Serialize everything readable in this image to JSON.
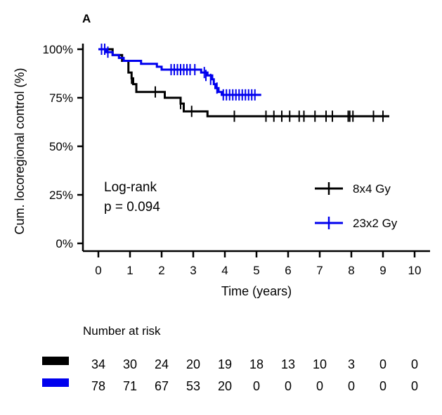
{
  "chart_data": {
    "type": "line",
    "panel_label": "A",
    "title": "",
    "xlabel": "Time (years)",
    "ylabel": "Cum. locoregional control (%)",
    "xlim": [
      0,
      10
    ],
    "ylim": [
      0,
      100
    ],
    "x_ticks": [
      "0",
      "1",
      "2",
      "3",
      "4",
      "5",
      "6",
      "7",
      "8",
      "9",
      "10"
    ],
    "y_ticks": [
      "0%",
      "25%",
      "50%",
      "75%",
      "100%"
    ],
    "grid": false,
    "legend_position": "right",
    "annotation": [
      "Log-rank",
      "p = 0.094"
    ],
    "series": [
      {
        "name": "8x4 Gy",
        "color": "#000000",
        "steps": [
          [
            0,
            100
          ],
          [
            0.45,
            97
          ],
          [
            0.75,
            94
          ],
          [
            0.95,
            88
          ],
          [
            1.05,
            85
          ],
          [
            1.1,
            82
          ],
          [
            1.2,
            78
          ],
          [
            2.1,
            75
          ],
          [
            2.6,
            72
          ],
          [
            2.7,
            68
          ],
          [
            3.45,
            65.5
          ],
          [
            9.2,
            65.5
          ]
        ],
        "censored": [
          [
            0.2,
            100
          ],
          [
            1.05,
            85
          ],
          [
            1.8,
            78
          ],
          [
            2.6,
            72
          ],
          [
            2.95,
            68
          ],
          [
            4.3,
            65.5
          ],
          [
            5.3,
            65.5
          ],
          [
            5.55,
            65.5
          ],
          [
            5.8,
            65.5
          ],
          [
            6.05,
            65.5
          ],
          [
            6.35,
            65.5
          ],
          [
            6.5,
            65.5
          ],
          [
            6.85,
            65.5
          ],
          [
            7.2,
            65.5
          ],
          [
            7.4,
            65.5
          ],
          [
            7.9,
            65.5
          ],
          [
            7.95,
            65.5
          ],
          [
            8.05,
            65.5
          ],
          [
            8.7,
            65.5
          ],
          [
            9.0,
            65.5
          ]
        ]
      },
      {
        "name": "23x2 Gy",
        "color": "#0000ee",
        "steps": [
          [
            0,
            100
          ],
          [
            0.25,
            98.5
          ],
          [
            0.45,
            97
          ],
          [
            0.65,
            95.5
          ],
          [
            0.8,
            94
          ],
          [
            1.35,
            92.5
          ],
          [
            1.85,
            91
          ],
          [
            2.0,
            89.5
          ],
          [
            3.25,
            88
          ],
          [
            3.45,
            86.5
          ],
          [
            3.6,
            84.5
          ],
          [
            3.65,
            82
          ],
          [
            3.7,
            80
          ],
          [
            3.8,
            78
          ],
          [
            3.9,
            76.5
          ],
          [
            5.15,
            76.5
          ]
        ],
        "censored": [
          [
            0.1,
            100
          ],
          [
            0.2,
            100
          ],
          [
            0.3,
            98.5
          ],
          [
            2.3,
            89.5
          ],
          [
            2.4,
            89.5
          ],
          [
            2.5,
            89.5
          ],
          [
            2.6,
            89.5
          ],
          [
            2.7,
            89.5
          ],
          [
            2.8,
            89.5
          ],
          [
            2.9,
            89.5
          ],
          [
            3.05,
            89.5
          ],
          [
            3.35,
            88
          ],
          [
            3.4,
            86.5
          ],
          [
            3.55,
            84.5
          ],
          [
            3.75,
            80
          ],
          [
            3.95,
            76.5
          ],
          [
            4.05,
            76.5
          ],
          [
            4.15,
            76.5
          ],
          [
            4.25,
            76.5
          ],
          [
            4.35,
            76.5
          ],
          [
            4.45,
            76.5
          ],
          [
            4.55,
            76.5
          ],
          [
            4.65,
            76.5
          ],
          [
            4.75,
            76.5
          ],
          [
            4.85,
            76.5
          ],
          [
            4.95,
            76.5
          ]
        ]
      }
    ],
    "number_at_risk": {
      "title": "Number at risk",
      "rows": [
        {
          "name": "8x4 Gy",
          "color": "#000000",
          "values": [
            "34",
            "30",
            "24",
            "20",
            "19",
            "18",
            "13",
            "10",
            "3",
            "0",
            "0"
          ]
        },
        {
          "name": "23x2 Gy",
          "color": "#0000ee",
          "values": [
            "78",
            "71",
            "67",
            "53",
            "20",
            "0",
            "0",
            "0",
            "0",
            "0",
            "0"
          ]
        }
      ]
    }
  }
}
